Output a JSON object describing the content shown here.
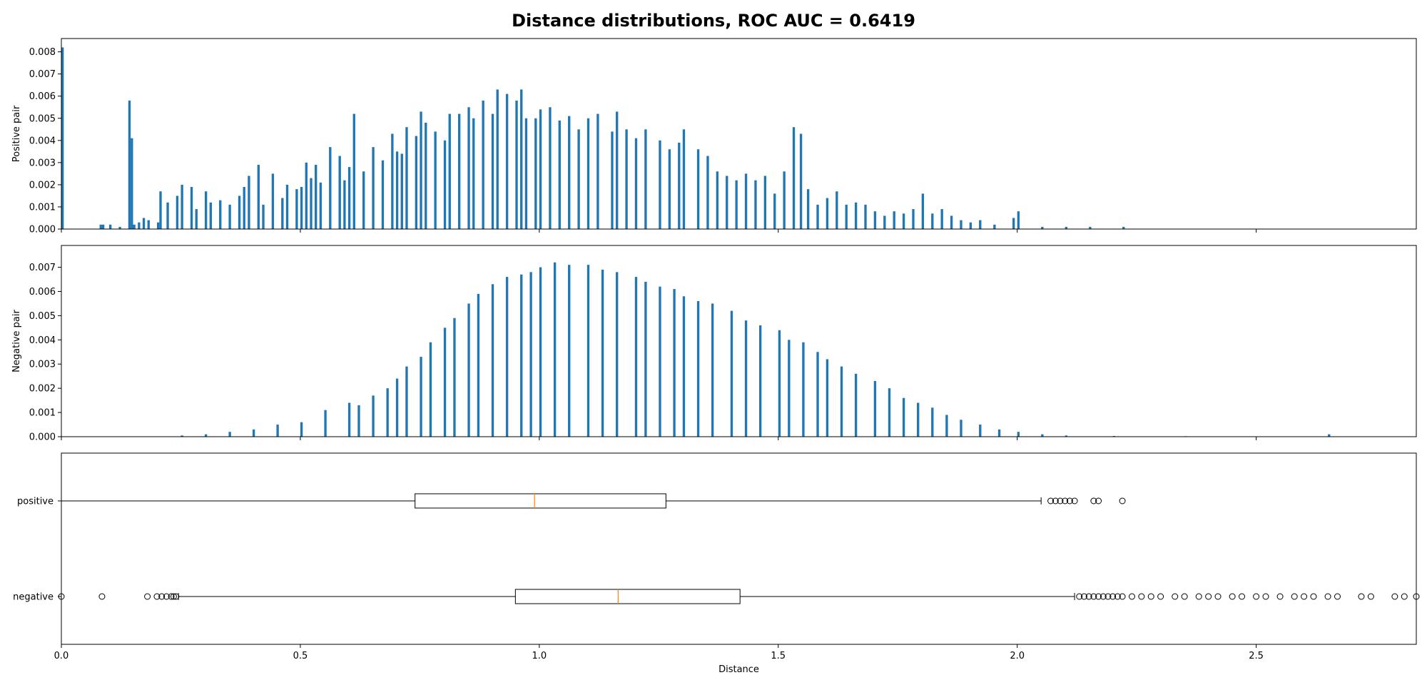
{
  "figure": {
    "title": "Distance distributions, ROC AUC = 0.6419"
  },
  "chart_data": [
    {
      "type": "bar",
      "subtype": "histogram",
      "ylabel": "Positive pair",
      "xlim": [
        0,
        2.835
      ],
      "ylim": [
        0,
        0.0086
      ],
      "yticks": [
        "0.000",
        "0.001",
        "0.002",
        "0.003",
        "0.004",
        "0.005",
        "0.006",
        "0.007",
        "0.008"
      ],
      "color": "#1f77b4",
      "bin_width": 0.005,
      "bins": [
        [
          0.0,
          0.0082
        ],
        [
          0.08,
          0.0002
        ],
        [
          0.085,
          0.0002
        ],
        [
          0.1,
          0.0002
        ],
        [
          0.12,
          0.0001
        ],
        [
          0.14,
          0.0058
        ],
        [
          0.145,
          0.0041
        ],
        [
          0.15,
          0.0002
        ],
        [
          0.16,
          0.0003
        ],
        [
          0.17,
          0.0005
        ],
        [
          0.18,
          0.0004
        ],
        [
          0.2,
          0.0003
        ],
        [
          0.205,
          0.0017
        ],
        [
          0.22,
          0.0012
        ],
        [
          0.24,
          0.0015
        ],
        [
          0.25,
          0.002
        ],
        [
          0.27,
          0.0019
        ],
        [
          0.28,
          0.0009
        ],
        [
          0.3,
          0.0017
        ],
        [
          0.31,
          0.0012
        ],
        [
          0.33,
          0.0013
        ],
        [
          0.35,
          0.0011
        ],
        [
          0.37,
          0.0015
        ],
        [
          0.38,
          0.0019
        ],
        [
          0.39,
          0.0024
        ],
        [
          0.41,
          0.0029
        ],
        [
          0.42,
          0.0011
        ],
        [
          0.44,
          0.0025
        ],
        [
          0.46,
          0.0014
        ],
        [
          0.47,
          0.002
        ],
        [
          0.49,
          0.0018
        ],
        [
          0.5,
          0.0019
        ],
        [
          0.51,
          0.003
        ],
        [
          0.52,
          0.0023
        ],
        [
          0.53,
          0.0029
        ],
        [
          0.54,
          0.0021
        ],
        [
          0.56,
          0.0037
        ],
        [
          0.58,
          0.0033
        ],
        [
          0.59,
          0.0022
        ],
        [
          0.6,
          0.0028
        ],
        [
          0.61,
          0.0052
        ],
        [
          0.63,
          0.0026
        ],
        [
          0.65,
          0.0037
        ],
        [
          0.67,
          0.0031
        ],
        [
          0.69,
          0.0043
        ],
        [
          0.7,
          0.0035
        ],
        [
          0.71,
          0.0034
        ],
        [
          0.72,
          0.0046
        ],
        [
          0.74,
          0.0042
        ],
        [
          0.75,
          0.0053
        ],
        [
          0.76,
          0.0048
        ],
        [
          0.78,
          0.0044
        ],
        [
          0.8,
          0.004
        ],
        [
          0.81,
          0.0052
        ],
        [
          0.83,
          0.0052
        ],
        [
          0.85,
          0.0055
        ],
        [
          0.86,
          0.005
        ],
        [
          0.88,
          0.0058
        ],
        [
          0.9,
          0.0052
        ],
        [
          0.91,
          0.0063
        ],
        [
          0.93,
          0.0061
        ],
        [
          0.95,
          0.0058
        ],
        [
          0.96,
          0.0063
        ],
        [
          0.97,
          0.005
        ],
        [
          0.99,
          0.005
        ],
        [
          1.0,
          0.0054
        ],
        [
          1.02,
          0.0055
        ],
        [
          1.04,
          0.0049
        ],
        [
          1.06,
          0.0051
        ],
        [
          1.08,
          0.0045
        ],
        [
          1.1,
          0.005
        ],
        [
          1.12,
          0.0052
        ],
        [
          1.15,
          0.0044
        ],
        [
          1.16,
          0.0053
        ],
        [
          1.18,
          0.0045
        ],
        [
          1.2,
          0.0041
        ],
        [
          1.22,
          0.0045
        ],
        [
          1.25,
          0.004
        ],
        [
          1.27,
          0.0036
        ],
        [
          1.29,
          0.0039
        ],
        [
          1.3,
          0.0045
        ],
        [
          1.33,
          0.0036
        ],
        [
          1.35,
          0.0033
        ],
        [
          1.37,
          0.0026
        ],
        [
          1.39,
          0.0024
        ],
        [
          1.41,
          0.0022
        ],
        [
          1.43,
          0.0025
        ],
        [
          1.45,
          0.0022
        ],
        [
          1.47,
          0.0024
        ],
        [
          1.49,
          0.0016
        ],
        [
          1.51,
          0.0026
        ],
        [
          1.53,
          0.0046
        ],
        [
          1.545,
          0.0043
        ],
        [
          1.56,
          0.0018
        ],
        [
          1.58,
          0.0011
        ],
        [
          1.6,
          0.0014
        ],
        [
          1.62,
          0.0017
        ],
        [
          1.64,
          0.0011
        ],
        [
          1.66,
          0.0012
        ],
        [
          1.68,
          0.0011
        ],
        [
          1.7,
          0.0008
        ],
        [
          1.72,
          0.0006
        ],
        [
          1.74,
          0.0008
        ],
        [
          1.76,
          0.0007
        ],
        [
          1.78,
          0.0009
        ],
        [
          1.8,
          0.0016
        ],
        [
          1.82,
          0.0007
        ],
        [
          1.84,
          0.0009
        ],
        [
          1.86,
          0.0006
        ],
        [
          1.88,
          0.0004
        ],
        [
          1.9,
          0.0003
        ],
        [
          1.92,
          0.0004
        ],
        [
          1.95,
          0.0002
        ],
        [
          1.99,
          0.0005
        ],
        [
          2.0,
          0.0008
        ],
        [
          2.05,
          0.0001
        ],
        [
          2.1,
          0.0001
        ],
        [
          2.15,
          0.0001
        ],
        [
          2.22,
          0.0001
        ]
      ]
    },
    {
      "type": "bar",
      "subtype": "histogram",
      "ylabel": "Negative pair",
      "xlim": [
        0,
        2.835
      ],
      "ylim": [
        0,
        0.0079
      ],
      "yticks": [
        "0.000",
        "0.001",
        "0.002",
        "0.003",
        "0.004",
        "0.005",
        "0.006",
        "0.007"
      ],
      "color": "#1f77b4",
      "bin_width": 0.005,
      "bins": [
        [
          0.25,
          5e-05
        ],
        [
          0.3,
          0.0001
        ],
        [
          0.35,
          0.0002
        ],
        [
          0.4,
          0.0003
        ],
        [
          0.45,
          0.0005
        ],
        [
          0.5,
          0.0006
        ],
        [
          0.55,
          0.0011
        ],
        [
          0.6,
          0.0014
        ],
        [
          0.62,
          0.0013
        ],
        [
          0.65,
          0.0017
        ],
        [
          0.68,
          0.002
        ],
        [
          0.7,
          0.0024
        ],
        [
          0.72,
          0.0029
        ],
        [
          0.75,
          0.0033
        ],
        [
          0.77,
          0.0039
        ],
        [
          0.8,
          0.0045
        ],
        [
          0.82,
          0.0049
        ],
        [
          0.85,
          0.0055
        ],
        [
          0.87,
          0.0059
        ],
        [
          0.9,
          0.0063
        ],
        [
          0.93,
          0.0066
        ],
        [
          0.96,
          0.0067
        ],
        [
          0.98,
          0.0068
        ],
        [
          1.0,
          0.007
        ],
        [
          1.03,
          0.0072
        ],
        [
          1.06,
          0.0071
        ],
        [
          1.1,
          0.0071
        ],
        [
          1.13,
          0.0069
        ],
        [
          1.16,
          0.0068
        ],
        [
          1.2,
          0.0066
        ],
        [
          1.22,
          0.0064
        ],
        [
          1.25,
          0.0062
        ],
        [
          1.28,
          0.0061
        ],
        [
          1.3,
          0.0058
        ],
        [
          1.33,
          0.0056
        ],
        [
          1.36,
          0.0055
        ],
        [
          1.4,
          0.0052
        ],
        [
          1.43,
          0.0048
        ],
        [
          1.46,
          0.0046
        ],
        [
          1.5,
          0.0044
        ],
        [
          1.52,
          0.004
        ],
        [
          1.55,
          0.0039
        ],
        [
          1.58,
          0.0035
        ],
        [
          1.6,
          0.0032
        ],
        [
          1.63,
          0.0029
        ],
        [
          1.66,
          0.0026
        ],
        [
          1.7,
          0.0023
        ],
        [
          1.73,
          0.002
        ],
        [
          1.76,
          0.0016
        ],
        [
          1.79,
          0.0014
        ],
        [
          1.82,
          0.0012
        ],
        [
          1.85,
          0.0009
        ],
        [
          1.88,
          0.0007
        ],
        [
          1.92,
          0.0005
        ],
        [
          1.96,
          0.0003
        ],
        [
          2.0,
          0.0002
        ],
        [
          2.05,
          0.0001
        ],
        [
          2.1,
          5e-05
        ],
        [
          2.2,
          3e-05
        ],
        [
          2.35,
          2e-05
        ],
        [
          2.65,
          0.0001
        ]
      ]
    },
    {
      "type": "boxplot",
      "orientation": "horizontal",
      "xlabel": "Distance",
      "xlim": [
        0,
        2.835
      ],
      "xticks": [
        "0.0",
        "0.5",
        "1.0",
        "1.5",
        "2.0",
        "2.5"
      ],
      "categories": [
        "positive",
        "negative"
      ],
      "median_color": "#ff7f0e",
      "boxes": [
        {
          "name": "positive",
          "whisker_low": 0.0,
          "q1": 0.74,
          "median": 0.99,
          "q3": 1.265,
          "whisker_high": 2.05,
          "outliers": [
            2.07,
            2.08,
            2.09,
            2.1,
            2.11,
            2.12,
            2.16,
            2.17,
            2.22
          ]
        },
        {
          "name": "negative",
          "whisker_low": 0.245,
          "q1": 0.95,
          "median": 1.165,
          "q3": 1.42,
          "whisker_high": 2.12,
          "outliers": [
            0.0,
            0.085,
            0.18,
            0.2,
            0.21,
            0.22,
            0.23,
            0.235,
            0.24,
            2.13,
            2.14,
            2.15,
            2.16,
            2.17,
            2.18,
            2.19,
            2.2,
            2.21,
            2.22,
            2.24,
            2.26,
            2.28,
            2.3,
            2.33,
            2.35,
            2.38,
            2.4,
            2.42,
            2.45,
            2.47,
            2.5,
            2.52,
            2.55,
            2.58,
            2.6,
            2.62,
            2.65,
            2.67,
            2.72,
            2.74,
            2.79,
            2.81,
            2.835
          ]
        }
      ]
    }
  ]
}
